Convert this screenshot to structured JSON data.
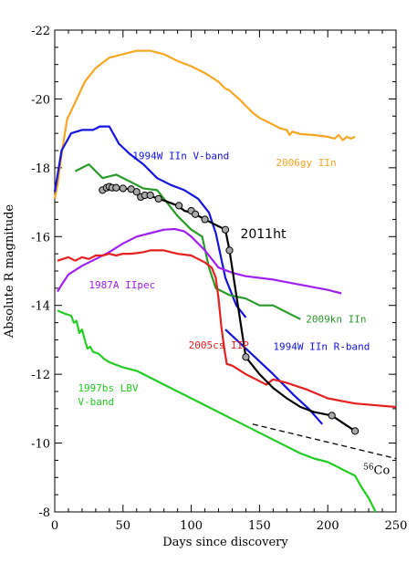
{
  "chart_data": {
    "type": "line",
    "xlabel": "Days since discovery",
    "ylabel": "Absolute R magnitude",
    "xlim": [
      0,
      250
    ],
    "ylim": [
      -8,
      -22
    ],
    "y_inverted": true,
    "grid": false,
    "x_ticks": [
      0,
      50,
      100,
      150,
      200,
      250
    ],
    "y_ticks": [
      -8,
      -10,
      -12,
      -14,
      -16,
      -18,
      -20,
      -22
    ],
    "x_tick_labels": [
      "0",
      "50",
      "100",
      "150",
      "200",
      "250"
    ],
    "y_tick_labels": [
      "-8",
      "-10",
      "-12",
      "-14",
      "-16",
      "-18",
      "-20",
      "-22"
    ],
    "series": [
      {
        "name": "2006gy IIn",
        "color": "#f5a623",
        "points": [
          [
            0,
            -17.1
          ],
          [
            2,
            -17.5
          ],
          [
            5,
            -18.4
          ],
          [
            9,
            -19.4
          ],
          [
            15,
            -19.9
          ],
          [
            22,
            -20.5
          ],
          [
            30,
            -20.9
          ],
          [
            40,
            -21.2
          ],
          [
            50,
            -21.3
          ],
          [
            60,
            -21.4
          ],
          [
            70,
            -21.4
          ],
          [
            80,
            -21.3
          ],
          [
            90,
            -21.1
          ],
          [
            100,
            -20.95
          ],
          [
            110,
            -20.75
          ],
          [
            120,
            -20.5
          ],
          [
            125,
            -20.3
          ],
          [
            128,
            -20.25
          ],
          [
            132,
            -20.1
          ],
          [
            135,
            -20.0
          ],
          [
            140,
            -19.8
          ],
          [
            145,
            -19.6
          ],
          [
            150,
            -19.45
          ],
          [
            155,
            -19.35
          ],
          [
            160,
            -19.25
          ],
          [
            165,
            -19.15
          ],
          [
            170,
            -19.1
          ],
          [
            172,
            -18.95
          ],
          [
            174,
            -19.05
          ],
          [
            180,
            -18.98
          ],
          [
            190,
            -18.95
          ],
          [
            200,
            -18.9
          ],
          [
            205,
            -18.85
          ],
          [
            208,
            -18.95
          ],
          [
            211,
            -18.8
          ],
          [
            214,
            -18.9
          ],
          [
            217,
            -18.85
          ],
          [
            220,
            -18.9
          ]
        ]
      },
      {
        "name": "1994W IIn V-band",
        "color": "#1414dc",
        "points": [
          [
            0,
            -17.3
          ],
          [
            5,
            -18.5
          ],
          [
            12,
            -19.0
          ],
          [
            20,
            -19.1
          ],
          [
            28,
            -19.1
          ],
          [
            33,
            -19.2
          ],
          [
            40,
            -19.2
          ],
          [
            47,
            -18.7
          ],
          [
            55,
            -18.4
          ],
          [
            65,
            -18.1
          ],
          [
            75,
            -17.7
          ],
          [
            85,
            -17.5
          ],
          [
            95,
            -17.35
          ],
          [
            105,
            -17.1
          ],
          [
            113,
            -16.7
          ],
          [
            118,
            -16.1
          ],
          [
            125,
            -14.8
          ],
          [
            133,
            -14.0
          ],
          [
            140,
            -13.65
          ]
        ]
      },
      {
        "name": "1994W IIn R-band",
        "color": "#1414dc",
        "points": [
          [
            125,
            -13.3
          ],
          [
            140,
            -12.75
          ],
          [
            160,
            -12.0
          ],
          [
            175,
            -11.4
          ],
          [
            186,
            -11.0
          ],
          [
            196,
            -10.55
          ]
        ]
      },
      {
        "name": "2009kn IIn",
        "color": "#2a9a2a",
        "points": [
          [
            15,
            -17.9
          ],
          [
            25,
            -18.1
          ],
          [
            35,
            -17.7
          ],
          [
            45,
            -17.8
          ],
          [
            55,
            -17.6
          ],
          [
            65,
            -17.4
          ],
          [
            75,
            -17.35
          ],
          [
            80,
            -17.1
          ],
          [
            90,
            -16.6
          ],
          [
            100,
            -16.2
          ],
          [
            108,
            -16.0
          ],
          [
            113,
            -15.1
          ],
          [
            118,
            -14.5
          ],
          [
            128,
            -14.3
          ],
          [
            140,
            -14.2
          ],
          [
            150,
            -14.0
          ],
          [
            160,
            -14.0
          ],
          [
            170,
            -13.8
          ],
          [
            180,
            -13.6
          ]
        ]
      },
      {
        "name": "1987A IIpec",
        "color": "#a020f0",
        "points": [
          [
            2,
            -14.4
          ],
          [
            5,
            -14.6
          ],
          [
            10,
            -14.9
          ],
          [
            20,
            -15.15
          ],
          [
            30,
            -15.35
          ],
          [
            40,
            -15.55
          ],
          [
            50,
            -15.8
          ],
          [
            60,
            -16.0
          ],
          [
            70,
            -16.1
          ],
          [
            80,
            -16.2
          ],
          [
            88,
            -16.22
          ],
          [
            95,
            -16.15
          ],
          [
            100,
            -16.0
          ],
          [
            105,
            -15.8
          ],
          [
            110,
            -15.6
          ],
          [
            115,
            -15.35
          ],
          [
            120,
            -15.1
          ],
          [
            130,
            -14.95
          ],
          [
            140,
            -14.85
          ],
          [
            160,
            -14.75
          ],
          [
            180,
            -14.6
          ],
          [
            200,
            -14.45
          ],
          [
            210,
            -14.35
          ]
        ]
      },
      {
        "name": "2005cs IIP",
        "color": "#e52020",
        "points": [
          [
            2,
            -15.3
          ],
          [
            6,
            -15.35
          ],
          [
            10,
            -15.4
          ],
          [
            15,
            -15.3
          ],
          [
            20,
            -15.4
          ],
          [
            25,
            -15.35
          ],
          [
            30,
            -15.45
          ],
          [
            35,
            -15.45
          ],
          [
            40,
            -15.5
          ],
          [
            45,
            -15.45
          ],
          [
            50,
            -15.5
          ],
          [
            55,
            -15.5
          ],
          [
            60,
            -15.52
          ],
          [
            65,
            -15.55
          ],
          [
            70,
            -15.6
          ],
          [
            75,
            -15.6
          ],
          [
            80,
            -15.6
          ],
          [
            85,
            -15.55
          ],
          [
            90,
            -15.5
          ],
          [
            100,
            -15.45
          ],
          [
            105,
            -15.35
          ],
          [
            110,
            -15.25
          ],
          [
            115,
            -15.1
          ],
          [
            118,
            -14.8
          ],
          [
            120,
            -14.2
          ],
          [
            122,
            -13.4
          ],
          [
            124,
            -12.8
          ],
          [
            126,
            -12.3
          ],
          [
            130,
            -12.25
          ],
          [
            140,
            -12.0
          ],
          [
            150,
            -11.8
          ],
          [
            155,
            -11.7
          ],
          [
            160,
            -11.85
          ],
          [
            170,
            -11.75
          ],
          [
            185,
            -11.55
          ],
          [
            200,
            -11.3
          ],
          [
            220,
            -11.15
          ],
          [
            250,
            -11.05
          ]
        ]
      },
      {
        "name": "1997bs LBV V-band",
        "color": "#22cc22",
        "points": [
          [
            2,
            -13.85
          ],
          [
            8,
            -13.75
          ],
          [
            12,
            -13.7
          ],
          [
            14,
            -13.5
          ],
          [
            16,
            -13.55
          ],
          [
            18,
            -13.2
          ],
          [
            20,
            -13.3
          ],
          [
            22,
            -13.0
          ],
          [
            24,
            -12.75
          ],
          [
            26,
            -12.8
          ],
          [
            28,
            -12.65
          ],
          [
            32,
            -12.6
          ],
          [
            36,
            -12.45
          ],
          [
            40,
            -12.35
          ],
          [
            50,
            -12.2
          ],
          [
            60,
            -12.1
          ],
          [
            70,
            -11.9
          ],
          [
            80,
            -11.7
          ],
          [
            90,
            -11.5
          ],
          [
            100,
            -11.3
          ],
          [
            110,
            -11.1
          ],
          [
            120,
            -10.9
          ],
          [
            130,
            -10.7
          ],
          [
            140,
            -10.5
          ],
          [
            150,
            -10.3
          ],
          [
            160,
            -10.1
          ],
          [
            170,
            -9.9
          ],
          [
            180,
            -9.7
          ],
          [
            190,
            -9.55
          ],
          [
            200,
            -9.45
          ],
          [
            210,
            -9.25
          ],
          [
            220,
            -9.05
          ],
          [
            225,
            -8.7
          ],
          [
            230,
            -8.4
          ],
          [
            235,
            -8.0
          ]
        ]
      },
      {
        "name": "2011ht",
        "color": "#000000",
        "points": [
          [
            35,
            -17.35
          ],
          [
            38,
            -17.4
          ],
          [
            40,
            -17.45
          ],
          [
            42,
            -17.42
          ],
          [
            45,
            -17.42
          ],
          [
            50,
            -17.4
          ],
          [
            55,
            -17.38
          ],
          [
            60,
            -17.3
          ],
          [
            63,
            -17.15
          ],
          [
            66,
            -17.2
          ],
          [
            70,
            -17.2
          ],
          [
            75,
            -17.1
          ],
          [
            80,
            -17.05
          ],
          [
            90,
            -16.9
          ],
          [
            95,
            -16.75
          ],
          [
            100,
            -16.7
          ],
          [
            103,
            -16.65
          ],
          [
            110,
            -16.5
          ],
          [
            115,
            -16.4
          ],
          [
            120,
            -16.3
          ],
          [
            125,
            -16.2
          ],
          [
            128,
            -15.6
          ],
          [
            133,
            -14.3
          ],
          [
            140,
            -12.5
          ],
          [
            150,
            -12.0
          ],
          [
            160,
            -11.6
          ],
          [
            170,
            -11.3
          ],
          [
            180,
            -11.05
          ],
          [
            190,
            -10.9
          ],
          [
            203,
            -10.8
          ],
          [
            220,
            -10.35
          ]
        ]
      },
      {
        "name": "56Co",
        "color": "#000000",
        "dashed": true,
        "points": [
          [
            145,
            -10.55
          ],
          [
            250,
            -9.55
          ]
        ]
      }
    ],
    "markers_2011ht": [
      [
        35,
        -17.35
      ],
      [
        38,
        -17.42
      ],
      [
        40,
        -17.45
      ],
      [
        42,
        -17.42
      ],
      [
        45,
        -17.42
      ],
      [
        50,
        -17.4
      ],
      [
        56,
        -17.38
      ],
      [
        60,
        -17.3
      ],
      [
        63,
        -17.15
      ],
      [
        66,
        -17.2
      ],
      [
        70,
        -17.2
      ],
      [
        76,
        -17.1
      ],
      [
        91,
        -16.9
      ],
      [
        100,
        -16.75
      ],
      [
        103,
        -16.65
      ],
      [
        110,
        -16.5
      ],
      [
        125,
        -16.2
      ],
      [
        128,
        -15.6
      ],
      [
        140,
        -12.5
      ],
      [
        203,
        -10.8
      ],
      [
        220,
        -10.35
      ]
    ],
    "annotations": [
      {
        "text": "2006gy IIn",
        "x": 162,
        "y": -18.05,
        "color": "#f5a623",
        "cls": "series-label"
      },
      {
        "text": "1994W IIn V-band",
        "x": 57,
        "y": -18.25,
        "color": "#1414dc",
        "cls": "series-label"
      },
      {
        "text": "2011ht",
        "x": 136,
        "y": -15.95,
        "color": "#000000",
        "cls": "big-label"
      },
      {
        "text": "1987A IIpec",
        "x": 25,
        "y": -14.5,
        "color": "#a020f0",
        "cls": "series-label"
      },
      {
        "text": "2009kn IIn",
        "x": 184,
        "y": -13.5,
        "color": "#2a9a2a",
        "cls": "series-label"
      },
      {
        "text": "2005cs IIP",
        "x": 98,
        "y": -12.75,
        "color": "#e52020",
        "cls": "series-label"
      },
      {
        "text": "1994W IIn R-band",
        "x": 160,
        "y": -12.7,
        "color": "#1414dc",
        "cls": "series-label"
      },
      {
        "text": "1997bs LBV",
        "x": 17,
        "y": -11.5,
        "color": "#22cc22",
        "cls": "series-label"
      },
      {
        "text": "V-band",
        "x": 17,
        "y": -11.1,
        "color": "#22cc22",
        "cls": "series-label"
      }
    ],
    "co_label": {
      "sup": "56",
      "base": "Co",
      "x": 226,
      "y": -9.1
    }
  }
}
